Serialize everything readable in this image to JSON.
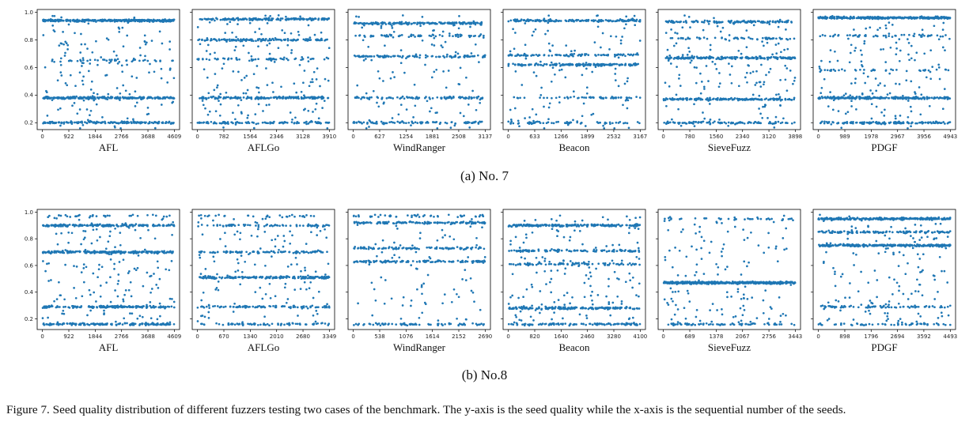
{
  "figure": {
    "sub_captions": [
      "(a)  No. 7",
      "(b)  No.8"
    ],
    "caption": "Figure 7. Seed quality distribution of different fuzzers testing two cases of the benchmark. The y-axis is the seed quality while the x-axis is the sequential number of the seeds.",
    "point_color": "#1f77b4"
  },
  "chart_data": [
    {
      "type": "scatter",
      "group": "No. 7",
      "xlabel": "AFL",
      "xticks": [
        0,
        922,
        1844,
        2766,
        3688,
        4609
      ],
      "yticks": [
        0.2,
        0.4,
        0.6,
        0.8,
        1.0
      ],
      "ylim": [
        0.15,
        1.02
      ],
      "n_points": 4609,
      "bands": [
        {
          "y": 0.94,
          "w": 0.45
        },
        {
          "y": 0.38,
          "w": 0.3
        },
        {
          "y": 0.2,
          "w": 0.2
        },
        {
          "y": 0.65,
          "w": 0.05
        }
      ]
    },
    {
      "type": "scatter",
      "group": "No. 7",
      "xlabel": "AFLGo",
      "xticks": [
        0,
        782,
        1564,
        2346,
        3128,
        3910
      ],
      "yticks": [
        0.2,
        0.4,
        0.6,
        0.8,
        1.0
      ],
      "ylim": [
        0.15,
        1.02
      ],
      "n_points": 3910,
      "bands": [
        {
          "y": 0.95,
          "w": 0.25
        },
        {
          "y": 0.8,
          "w": 0.22
        },
        {
          "y": 0.38,
          "w": 0.28
        },
        {
          "y": 0.2,
          "w": 0.15
        },
        {
          "y": 0.66,
          "w": 0.1
        }
      ]
    },
    {
      "type": "scatter",
      "group": "No. 7",
      "xlabel": "WindRanger",
      "xticks": [
        0,
        627,
        1254,
        1881,
        2508,
        3137
      ],
      "yticks": [
        0.2,
        0.4,
        0.6,
        0.8,
        1.0
      ],
      "ylim": [
        0.15,
        1.02
      ],
      "n_points": 3137,
      "bands": [
        {
          "y": 0.92,
          "w": 0.3
        },
        {
          "y": 0.68,
          "w": 0.22
        },
        {
          "y": 0.83,
          "w": 0.12
        },
        {
          "y": 0.38,
          "w": 0.18
        },
        {
          "y": 0.2,
          "w": 0.18
        }
      ]
    },
    {
      "type": "scatter",
      "group": "No. 7",
      "xlabel": "Beacon",
      "xticks": [
        0,
        633,
        1266,
        1899,
        2532,
        3167
      ],
      "yticks": [
        0.2,
        0.4,
        0.6,
        0.8,
        1.0
      ],
      "ylim": [
        0.15,
        1.02
      ],
      "n_points": 3167,
      "bands": [
        {
          "y": 0.94,
          "w": 0.28
        },
        {
          "y": 0.62,
          "w": 0.3
        },
        {
          "y": 0.69,
          "w": 0.18
        },
        {
          "y": 0.2,
          "w": 0.14
        },
        {
          "y": 0.38,
          "w": 0.1
        }
      ]
    },
    {
      "type": "scatter",
      "group": "No. 7",
      "xlabel": "SieveFuzz",
      "xticks": [
        0,
        780,
        1560,
        2340,
        3120,
        3898
      ],
      "yticks": [
        0.2,
        0.4,
        0.6,
        0.8,
        1.0
      ],
      "ylim": [
        0.15,
        1.02
      ],
      "n_points": 3898,
      "bands": [
        {
          "y": 0.93,
          "w": 0.22
        },
        {
          "y": 0.67,
          "w": 0.3
        },
        {
          "y": 0.37,
          "w": 0.26
        },
        {
          "y": 0.2,
          "w": 0.14
        },
        {
          "y": 0.81,
          "w": 0.08
        }
      ]
    },
    {
      "type": "scatter",
      "group": "No. 7",
      "xlabel": "PDGF",
      "xticks": [
        0,
        989,
        1978,
        2967,
        3956,
        4943
      ],
      "yticks": [
        0.2,
        0.4,
        0.6,
        0.8,
        1.0
      ],
      "ylim": [
        0.15,
        1.02
      ],
      "n_points": 4943,
      "bands": [
        {
          "y": 0.96,
          "w": 0.45
        },
        {
          "y": 0.38,
          "w": 0.28
        },
        {
          "y": 0.2,
          "w": 0.17
        },
        {
          "y": 0.58,
          "w": 0.05
        },
        {
          "y": 0.83,
          "w": 0.05
        }
      ]
    },
    {
      "type": "scatter",
      "group": "No.8",
      "xlabel": "AFL",
      "xticks": [
        0,
        922,
        1844,
        2766,
        3688,
        4609
      ],
      "yticks": [
        0.2,
        0.4,
        0.6,
        0.8,
        1.0
      ],
      "ylim": [
        0.12,
        1.02
      ],
      "n_points": 4609,
      "bands": [
        {
          "y": 0.7,
          "w": 0.28
        },
        {
          "y": 0.9,
          "w": 0.22
        },
        {
          "y": 0.29,
          "w": 0.22
        },
        {
          "y": 0.16,
          "w": 0.2
        },
        {
          "y": 0.97,
          "w": 0.05
        }
      ]
    },
    {
      "type": "scatter",
      "group": "No.8",
      "xlabel": "AFLGo",
      "xticks": [
        0,
        670,
        1340,
        2010,
        2680,
        3349
      ],
      "yticks": [
        0.2,
        0.4,
        0.6,
        0.8,
        1.0
      ],
      "ylim": [
        0.12,
        1.02
      ],
      "n_points": 3349,
      "bands": [
        {
          "y": 0.51,
          "w": 0.3
        },
        {
          "y": 0.9,
          "w": 0.15
        },
        {
          "y": 0.7,
          "w": 0.18
        },
        {
          "y": 0.29,
          "w": 0.14
        },
        {
          "y": 0.16,
          "w": 0.14
        },
        {
          "y": 0.97,
          "w": 0.06
        }
      ]
    },
    {
      "type": "scatter",
      "group": "No.8",
      "xlabel": "WindRanger",
      "xticks": [
        0,
        538,
        1076,
        1614,
        2152,
        2690
      ],
      "yticks": [
        0.2,
        0.4,
        0.6,
        0.8,
        1.0
      ],
      "ylim": [
        0.12,
        1.02
      ],
      "n_points": 2690,
      "bands": [
        {
          "y": 0.92,
          "w": 0.25
        },
        {
          "y": 0.63,
          "w": 0.22
        },
        {
          "y": 0.73,
          "w": 0.2
        },
        {
          "y": 0.16,
          "w": 0.16
        },
        {
          "y": 0.97,
          "w": 0.08
        }
      ]
    },
    {
      "type": "scatter",
      "group": "No.8",
      "xlabel": "Beacon",
      "xticks": [
        0,
        820,
        1640,
        2460,
        3280,
        4100
      ],
      "yticks": [
        0.2,
        0.4,
        0.6,
        0.8,
        1.0
      ],
      "ylim": [
        0.12,
        1.02
      ],
      "n_points": 4100,
      "bands": [
        {
          "y": 0.9,
          "w": 0.22
        },
        {
          "y": 0.28,
          "w": 0.25
        },
        {
          "y": 0.71,
          "w": 0.16
        },
        {
          "y": 0.61,
          "w": 0.12
        },
        {
          "y": 0.16,
          "w": 0.15
        }
      ]
    },
    {
      "type": "scatter",
      "group": "No.8",
      "xlabel": "SieveFuzz",
      "xticks": [
        0,
        689,
        1378,
        2067,
        2756,
        3443
      ],
      "yticks": [
        0.2,
        0.4,
        0.6,
        0.8,
        1.0
      ],
      "ylim": [
        0.12,
        1.02
      ],
      "n_points": 3443,
      "bands": [
        {
          "y": 0.47,
          "w": 0.65
        },
        {
          "y": 0.16,
          "w": 0.08
        },
        {
          "y": 0.95,
          "w": 0.04
        }
      ]
    },
    {
      "type": "scatter",
      "group": "No.8",
      "xlabel": "PDGF",
      "xticks": [
        0,
        898,
        1796,
        2694,
        3592,
        4493
      ],
      "yticks": [
        0.2,
        0.4,
        0.6,
        0.8,
        1.0
      ],
      "ylim": [
        0.12,
        1.02
      ],
      "n_points": 4493,
      "bands": [
        {
          "y": 0.95,
          "w": 0.32
        },
        {
          "y": 0.75,
          "w": 0.3
        },
        {
          "y": 0.85,
          "w": 0.12
        },
        {
          "y": 0.29,
          "w": 0.1
        },
        {
          "y": 0.16,
          "w": 0.06
        }
      ]
    }
  ]
}
